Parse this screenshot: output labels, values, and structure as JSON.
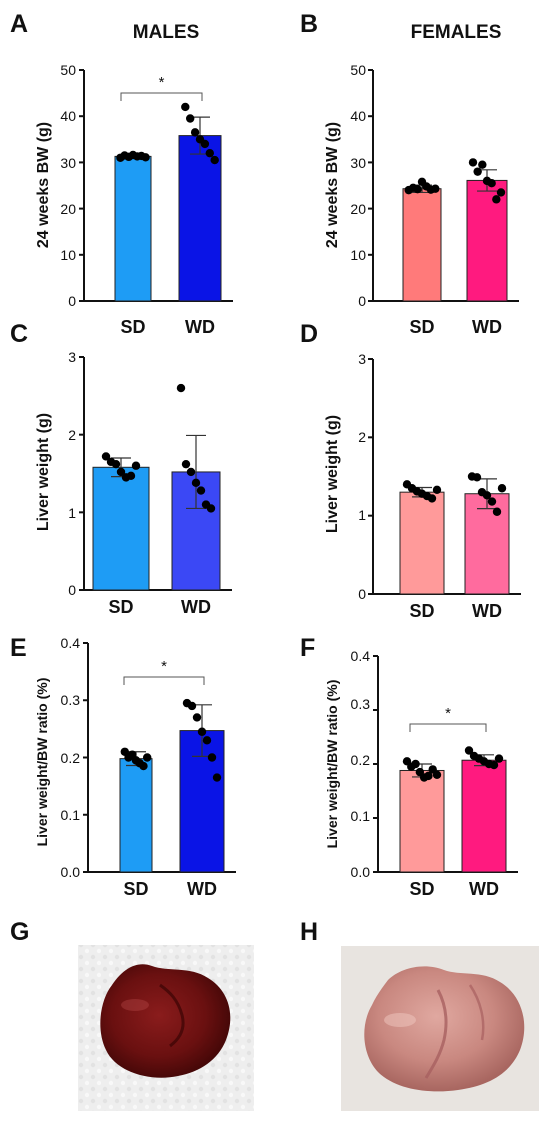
{
  "column_titles": {
    "males": "MALES",
    "females": "FEMALES"
  },
  "panels": [
    {
      "letter": "A",
      "ylabel": "24 weeks BW  (g)",
      "yticks": [
        "0",
        "10",
        "20",
        "30",
        "40",
        "50"
      ]
    },
    {
      "letter": "B",
      "ylabel": "24 weeks BW  (g)",
      "yticks": [
        "0",
        "10",
        "20",
        "30",
        "40",
        "50"
      ]
    },
    {
      "letter": "C",
      "ylabel": "Liver weight (g)",
      "yticks": [
        "0",
        "1",
        "2",
        "3"
      ]
    },
    {
      "letter": "D",
      "ylabel": "Liver weight (g)",
      "yticks": [
        "0",
        "1",
        "2",
        "3"
      ]
    },
    {
      "letter": "E",
      "ylabel": "Liver weight/BW ratio (%)",
      "yticks": [
        "0.0",
        "0.1",
        "0.2",
        "0.3",
        "0.4"
      ]
    },
    {
      "letter": "F",
      "ylabel": "Liver weight/BW ratio (%)",
      "yticks": [
        "0.0",
        "0.1",
        "0.2",
        "0.3",
        "0.4"
      ]
    },
    {
      "letter": "G"
    },
    {
      "letter": "H"
    }
  ],
  "chart_data": [
    {
      "type": "bar",
      "panel": "A",
      "title": "MALES",
      "ylabel": "24 weeks BW  (g)",
      "ylim": [
        0,
        50
      ],
      "categories": [
        "SD",
        "WD"
      ],
      "values": [
        31.3,
        35.8
      ],
      "errors": [
        0.4,
        4.0
      ],
      "bar_colors": [
        "#1E9CF5",
        "#0A14E6"
      ],
      "points": [
        [
          31.0,
          31.5,
          31.2,
          31.6,
          31.3,
          31.4,
          31.1
        ],
        [
          42.0,
          39.5,
          36.5,
          35.0,
          34.0,
          32.0,
          30.5
        ]
      ],
      "significance": {
        "label": "*",
        "pair": [
          0,
          1
        ]
      }
    },
    {
      "type": "bar",
      "panel": "B",
      "title": "FEMALES",
      "ylabel": "24 weeks BW  (g)",
      "ylim": [
        0,
        50
      ],
      "categories": [
        "SD",
        "WD"
      ],
      "values": [
        24.3,
        26.1
      ],
      "errors": [
        0.8,
        2.3
      ],
      "bar_colors": [
        "#FF7A7A",
        "#FF1A7F"
      ],
      "points": [
        [
          24.0,
          24.5,
          24.2,
          25.8,
          24.8,
          24.1,
          24.3
        ],
        [
          30.0,
          28.0,
          29.5,
          26.0,
          25.5,
          22.0,
          23.5
        ]
      ]
    },
    {
      "type": "bar",
      "panel": "C",
      "ylabel": "Liver weight (g)",
      "ylim": [
        0,
        3
      ],
      "categories": [
        "SD",
        "WD"
      ],
      "values": [
        1.58,
        1.52
      ],
      "errors": [
        0.12,
        0.47
      ],
      "bar_colors": [
        "#1E9CF5",
        "#3B48F5"
      ],
      "points": [
        [
          1.72,
          1.65,
          1.62,
          1.52,
          1.45,
          1.47,
          1.6
        ],
        [
          2.6,
          1.62,
          1.52,
          1.38,
          1.28,
          1.1,
          1.05
        ]
      ]
    },
    {
      "type": "bar",
      "panel": "D",
      "ylabel": "Liver weight (g)",
      "ylim": [
        0,
        3
      ],
      "categories": [
        "SD",
        "WD"
      ],
      "values": [
        1.3,
        1.28
      ],
      "errors": [
        0.06,
        0.19
      ],
      "bar_colors": [
        "#FF9A9A",
        "#FF6B9E"
      ],
      "points": [
        [
          1.4,
          1.35,
          1.31,
          1.28,
          1.25,
          1.22,
          1.33
        ],
        [
          1.5,
          1.49,
          1.3,
          1.26,
          1.18,
          1.05,
          1.35
        ]
      ]
    },
    {
      "type": "bar",
      "panel": "E",
      "ylabel": "Liver weight/BW ratio (%)",
      "ylim": [
        0,
        0.4
      ],
      "categories": [
        "SD",
        "WD"
      ],
      "values": [
        0.198,
        0.247
      ],
      "errors": [
        0.012,
        0.045
      ],
      "bar_colors": [
        "#1E9CF5",
        "#0A14E6"
      ],
      "points": [
        [
          0.21,
          0.2,
          0.205,
          0.195,
          0.19,
          0.185,
          0.2
        ],
        [
          0.295,
          0.29,
          0.27,
          0.245,
          0.23,
          0.2,
          0.165
        ]
      ],
      "significance": {
        "label": "*",
        "pair": [
          0,
          1
        ]
      }
    },
    {
      "type": "bar",
      "panel": "F",
      "ylabel": "Liver weight/BW ratio (%)",
      "ylim": [
        0,
        0.4
      ],
      "categories": [
        "SD",
        "WD"
      ],
      "values": [
        0.188,
        0.207
      ],
      "errors": [
        0.012,
        0.01
      ],
      "bar_colors": [
        "#FF9A9A",
        "#FF1A7F"
      ],
      "points": [
        [
          0.205,
          0.195,
          0.2,
          0.185,
          0.175,
          0.178,
          0.19,
          0.18
        ],
        [
          0.225,
          0.215,
          0.21,
          0.205,
          0.2,
          0.198,
          0.21
        ]
      ],
      "significance": {
        "label": "*",
        "pair": [
          0,
          1
        ]
      }
    }
  ]
}
